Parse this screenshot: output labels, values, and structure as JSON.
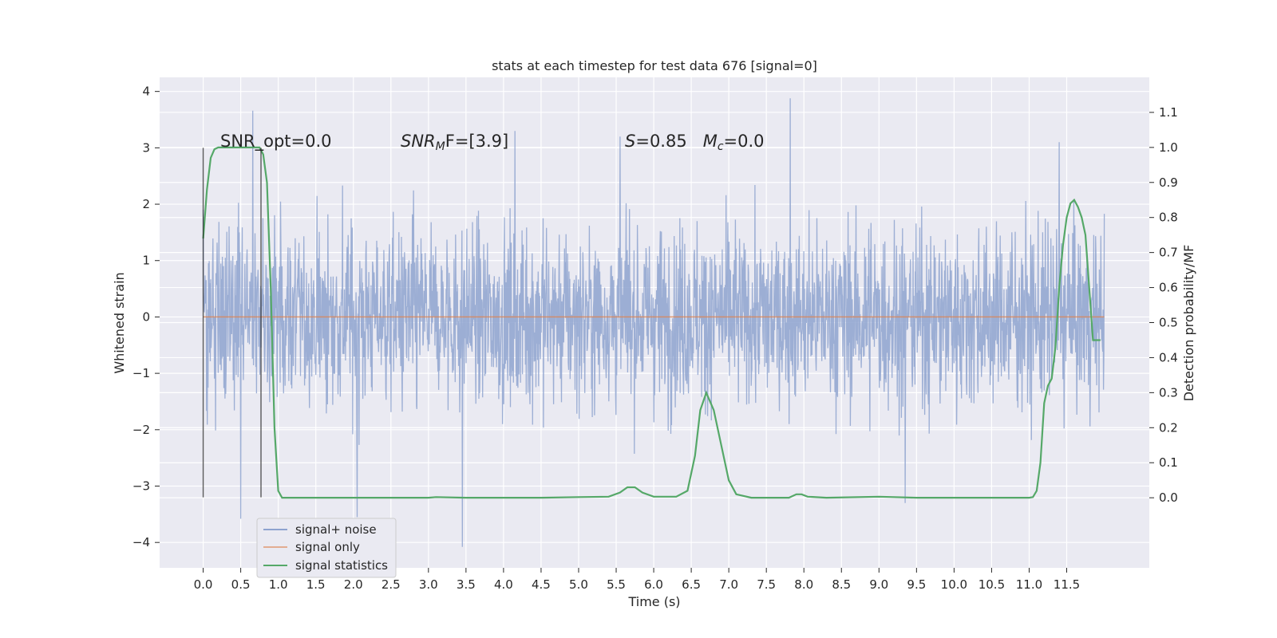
{
  "chart_data": {
    "type": "line",
    "title": "stats at each timestep for test data 676 [signal=0]",
    "xlabel": "Time (s)",
    "ylabel": "Whitened strain",
    "ylabel_right": "Detection probability/MF",
    "xlim": [
      -0.58,
      12.6
    ],
    "ylim": [
      -4.45,
      4.25
    ],
    "ylim_right": [
      -0.2,
      1.2
    ],
    "x_ticks": [
      0.0,
      0.5,
      1.0,
      1.5,
      2.0,
      2.5,
      3.0,
      3.5,
      4.0,
      4.5,
      5.0,
      5.5,
      6.0,
      6.5,
      7.0,
      7.5,
      8.0,
      8.5,
      9.0,
      9.5,
      10.0,
      10.5,
      11.0,
      11.5
    ],
    "x_tick_labels": [
      "0.0",
      "0.5",
      "1.0",
      "1.5",
      "2.0",
      "2.5",
      "3.0",
      "3.5",
      "4.0",
      "4.5",
      "5.0",
      "5.5",
      "6.0",
      "6.5",
      "7.0",
      "7.5",
      "8.0",
      "8.5",
      "9.0",
      "9.5",
      "10.0",
      "10.5",
      "11.0",
      "11.5"
    ],
    "y_ticks": [
      -4,
      -3,
      -2,
      -1,
      0,
      1,
      2,
      3,
      4
    ],
    "y_tick_labels": [
      "−4",
      "−3",
      "−2",
      "−1",
      "0",
      "1",
      "2",
      "3",
      "4"
    ],
    "y_right_ticks": [
      0.0,
      0.1,
      0.2,
      0.3,
      0.4,
      0.5,
      0.6,
      0.7,
      0.8,
      0.9,
      1.0,
      1.1
    ],
    "y_right_tick_labels": [
      "0.0",
      "0.1",
      "0.2",
      "0.3",
      "0.4",
      "0.5",
      "0.6",
      "0.7",
      "0.8",
      "0.9",
      "1.0",
      "1.1"
    ],
    "grid": true,
    "legend_position": "lower-left",
    "series": [
      {
        "name": "signal+ noise",
        "color": "#8ea3cf",
        "kind": "noise",
        "x_range": [
          0.0,
          12.0
        ],
        "envelope_typical": [
          -1.8,
          1.8
        ],
        "peaks": [
          [
            0.66,
            3.66
          ],
          [
            7.82,
            3.88
          ],
          [
            0.5,
            -3.58
          ],
          [
            2.05,
            -3.55
          ],
          [
            3.45,
            -4.08
          ],
          [
            9.35,
            -3.3
          ],
          [
            11.4,
            3.1
          ],
          [
            5.55,
            3.2
          ],
          [
            4.15,
            3.3
          ]
        ]
      },
      {
        "name": "signal only",
        "color": "#dd8452",
        "x": [
          0.0,
          12.0
        ],
        "y": [
          0.0,
          0.0
        ]
      },
      {
        "name": "signal statistics",
        "color": "#55a868",
        "axis": "right",
        "x": [
          0.0,
          0.05,
          0.1,
          0.15,
          0.2,
          0.3,
          0.45,
          0.6,
          0.7,
          0.75,
          0.8,
          0.85,
          0.9,
          0.95,
          1.0,
          1.05,
          1.1,
          1.2,
          2.0,
          3.0,
          3.1,
          3.5,
          4.0,
          4.5,
          5.0,
          5.4,
          5.55,
          5.65,
          5.75,
          5.85,
          6.0,
          6.3,
          6.45,
          6.55,
          6.62,
          6.7,
          6.8,
          6.9,
          7.0,
          7.1,
          7.3,
          7.8,
          7.9,
          7.97,
          8.05,
          8.3,
          9.0,
          9.2,
          9.5,
          10.0,
          10.5,
          11.0,
          11.05,
          11.1,
          11.15,
          11.2,
          11.25,
          11.3,
          11.35,
          11.4,
          11.45,
          11.5,
          11.55,
          11.6,
          11.65,
          11.7,
          11.75,
          11.8,
          11.85,
          11.9,
          11.95
        ],
        "y": [
          0.74,
          0.88,
          0.97,
          0.995,
          1.0,
          1.0,
          1.0,
          1.0,
          1.0,
          1.0,
          0.98,
          0.9,
          0.6,
          0.2,
          0.02,
          0.0,
          0.0,
          0.0,
          0.0,
          0.0,
          0.002,
          0.0,
          0.0,
          0.0,
          0.002,
          0.003,
          0.015,
          0.03,
          0.03,
          0.015,
          0.003,
          0.003,
          0.02,
          0.12,
          0.25,
          0.3,
          0.25,
          0.15,
          0.05,
          0.01,
          0.0,
          0.0,
          0.01,
          0.01,
          0.003,
          0.0,
          0.003,
          0.002,
          0.0,
          0.0,
          0.0,
          0.0,
          0.002,
          0.02,
          0.1,
          0.27,
          0.32,
          0.34,
          0.43,
          0.6,
          0.72,
          0.8,
          0.84,
          0.85,
          0.83,
          0.8,
          0.75,
          0.6,
          0.45,
          0.45,
          0.45
        ]
      }
    ],
    "vlines": [
      {
        "x": 0.0,
        "ymin": -3.2,
        "ymax": 3.0,
        "color": "#262626"
      },
      {
        "x": 0.77,
        "ymin": -3.2,
        "ymax": 3.0,
        "color": "#262626"
      }
    ],
    "annotations": [
      {
        "text": "SNR_opt=0.0",
        "x": 0.2,
        "y": 3.08
      },
      {
        "text": "SNR_MF=[3.9]",
        "x": 2.6,
        "y": 3.08
      },
      {
        "text": "S=0.85   M_c=0.0",
        "x": 5.6,
        "y": 3.08
      }
    ],
    "annotation_display": {
      "snr_opt": "SNR_opt=0.0",
      "snr_mf_main": "SNR",
      "snr_mf_sub": "M",
      "snr_mf_rest": "F=[3.9]",
      "s_italic": "S",
      "s_rest": "=0.85",
      "mc_italic": "M",
      "mc_sub": "c",
      "mc_rest": "=0.0"
    }
  }
}
